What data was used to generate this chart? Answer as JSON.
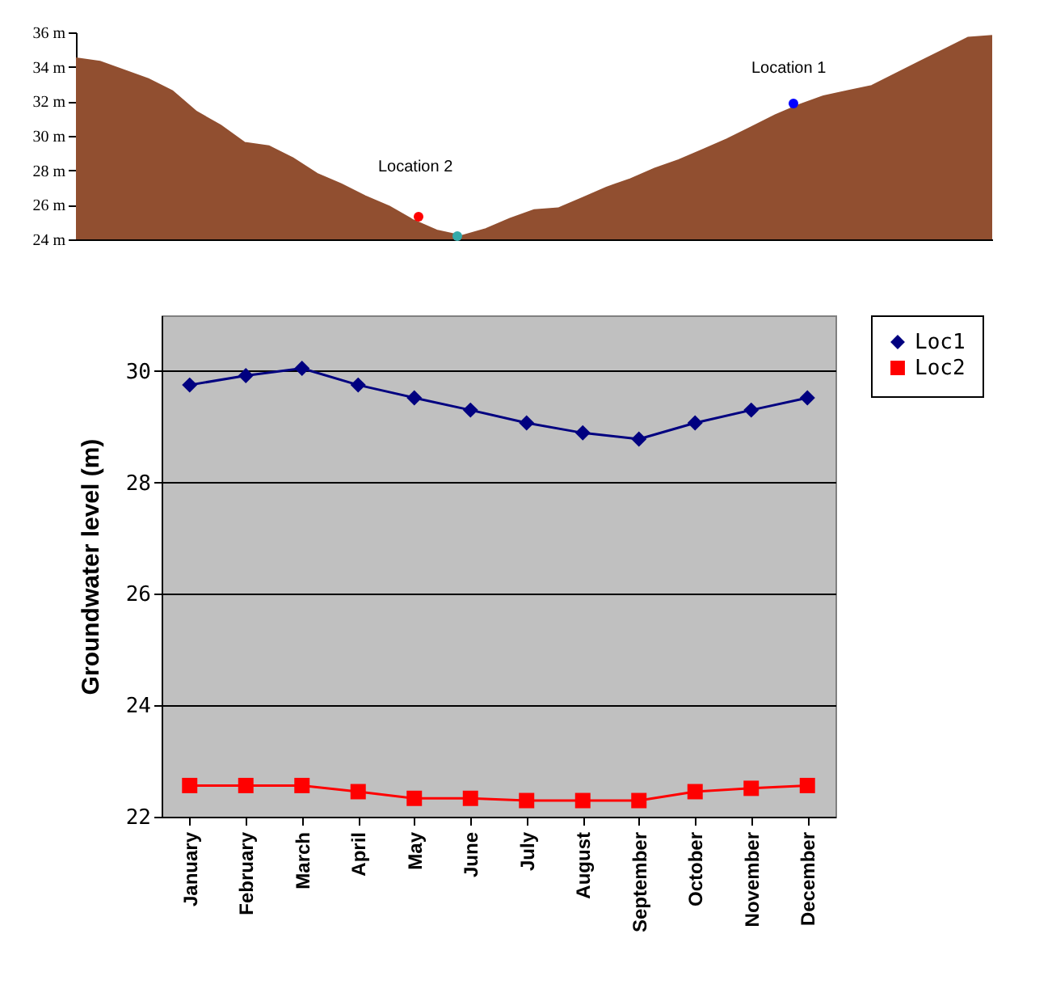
{
  "chart_data": [
    {
      "type": "area",
      "categories": [
        null,
        null,
        null,
        null,
        null,
        null,
        null,
        null,
        null,
        null,
        null,
        null,
        null,
        null,
        null,
        null,
        null,
        null,
        null,
        null,
        null,
        null,
        null,
        null,
        null,
        null,
        null,
        null,
        null,
        null,
        null,
        null,
        null,
        null,
        null,
        null,
        null,
        null,
        null
      ],
      "ylim": [
        24,
        36
      ],
      "yticks": [
        {
          "value": 24,
          "label": "24 m"
        },
        {
          "value": 26,
          "label": "26 m"
        },
        {
          "value": 28,
          "label": "28 m"
        },
        {
          "value": 30,
          "label": "30 m"
        },
        {
          "value": 32,
          "label": "32 m"
        },
        {
          "value": 34,
          "label": "34 m"
        },
        {
          "value": 36,
          "label": "36 m"
        }
      ],
      "tick_labels": "y",
      "legend": false,
      "color": "#914f30",
      "values": [
        34.5,
        34.3,
        33.8,
        33.3,
        32.6,
        31.4,
        30.6,
        29.6,
        29.4,
        28.7,
        27.8,
        27.2,
        26.5,
        25.9,
        25.1,
        24.5,
        24.2,
        24.6,
        25.2,
        25.7,
        25.8,
        26.4,
        27.0,
        27.5,
        28.1,
        28.6,
        29.2,
        29.8,
        30.5,
        31.2,
        31.8,
        32.3,
        32.6,
        32.9,
        33.6,
        34.3,
        35.0,
        35.7,
        35.8
      ],
      "annotations": [
        "Location 1",
        "Location 2"
      ]
    },
    {
      "type": "line",
      "categories": [
        "January",
        "February",
        "March",
        "April",
        "May",
        "June",
        "July",
        "August",
        "September",
        "October",
        "November",
        "December"
      ],
      "ylim": [
        22,
        31
      ],
      "yticks": [
        22,
        24,
        26,
        28,
        30
      ],
      "ylabel": "Groundwater level (m)",
      "grid": "y",
      "legend": "right",
      "series": [
        {
          "name": "Loc1",
          "color": "#000080",
          "marker": "diamond",
          "values": [
            29.75,
            29.92,
            30.05,
            29.75,
            29.52,
            29.3,
            29.07,
            28.89,
            28.78,
            29.07,
            29.3,
            29.52
          ]
        },
        {
          "name": "Loc2",
          "color": "#ff0000",
          "marker": "square",
          "values": [
            22.56,
            22.56,
            22.56,
            22.45,
            22.33,
            22.33,
            22.29,
            22.29,
            22.29,
            22.45,
            22.51,
            22.56
          ]
        }
      ]
    }
  ]
}
